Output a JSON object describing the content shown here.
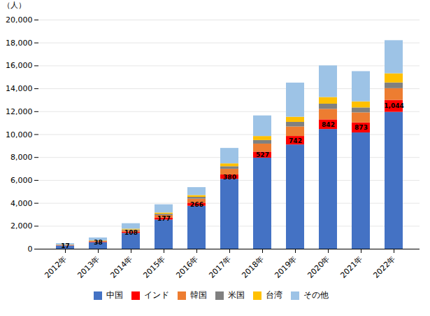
{
  "chart_data": {
    "type": "bar",
    "stacked": true,
    "categories": [
      "2012年",
      "2013年",
      "2014年",
      "2015年",
      "2016年",
      "2017年",
      "2018年",
      "2019年",
      "2020年",
      "2021年",
      "2022年"
    ],
    "series": [
      {
        "name": "中国",
        "color": "#4472C4",
        "values": [
          280,
          580,
          1380,
          2550,
          3750,
          6100,
          7950,
          9100,
          10450,
          10150,
          11950
        ]
      },
      {
        "name": "インド",
        "color": "#FF0000",
        "values": [
          17,
          38,
          108,
          177,
          266,
          380,
          527,
          742,
          842,
          873,
          1044
        ],
        "data_labels": true,
        "value_labels": [
          "17",
          "38",
          "108",
          "177",
          "266",
          "380",
          "527",
          "742",
          "842",
          "873",
          "1,044"
        ]
      },
      {
        "name": "韓国",
        "color": "#ED7D31",
        "values": [
          28,
          55,
          120,
          210,
          350,
          500,
          700,
          830,
          920,
          880,
          1020
        ]
      },
      {
        "name": "米国",
        "color": "#808080",
        "values": [
          18,
          35,
          70,
          110,
          160,
          220,
          310,
          400,
          450,
          430,
          500
        ]
      },
      {
        "name": "台湾",
        "color": "#FFC000",
        "values": [
          18,
          35,
          70,
          110,
          160,
          250,
          350,
          450,
          580,
          530,
          800
        ]
      },
      {
        "name": "その他",
        "color": "#9DC3E6",
        "values": [
          120,
          240,
          480,
          720,
          690,
          1350,
          1800,
          2980,
          2760,
          2640,
          2890
        ]
      }
    ],
    "ylabel": "（人）",
    "ylim": [
      0,
      20000
    ],
    "yticks": [
      0,
      {
        "value": 2000,
        "label": "2,000"
      },
      {
        "value": 4000,
        "label": "4,000"
      },
      {
        "value": 6000,
        "label": "6,000"
      },
      {
        "value": 8000,
        "label": "8,000"
      },
      {
        "value": 10000,
        "label": "10,000"
      },
      {
        "value": 12000,
        "label": "12,000"
      },
      {
        "value": 14000,
        "label": "14,000"
      },
      {
        "value": 16000,
        "label": "16,000"
      },
      {
        "value": 18000,
        "label": "18,000"
      },
      {
        "value": 20000,
        "label": "20,000"
      }
    ],
    "grid": true,
    "legend": "bottom"
  }
}
